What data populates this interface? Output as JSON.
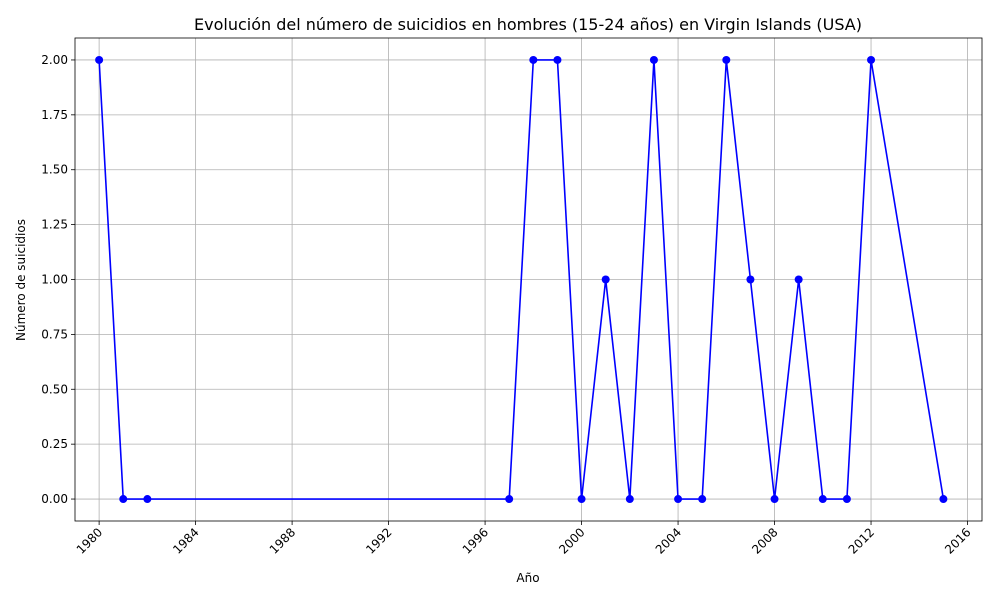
{
  "chart_data": {
    "type": "line",
    "title": "Evolución del número de suicidios en hombres (15-24 años) en Virgin Islands (USA)",
    "xlabel": "Año",
    "ylabel": "Número de suicidios",
    "xlim": [
      1979,
      2016.6
    ],
    "ylim": [
      -0.1,
      2.1
    ],
    "xticks": [
      1980,
      1984,
      1988,
      1992,
      1996,
      2000,
      2004,
      2008,
      2012,
      2016
    ],
    "yticks": [
      0.0,
      0.25,
      0.5,
      0.75,
      1.0,
      1.25,
      1.5,
      1.75,
      2.0
    ],
    "ytick_labels": [
      "0.00",
      "0.25",
      "0.50",
      "0.75",
      "1.00",
      "1.25",
      "1.50",
      "1.75",
      "2.00"
    ],
    "grid": true,
    "series": [
      {
        "color": "#0000ff",
        "marker": "circle",
        "x": [
          1980,
          1981,
          1982,
          1997,
          1998,
          1999,
          2000,
          2001,
          2002,
          2003,
          2004,
          2005,
          2006,
          2007,
          2008,
          2009,
          2010,
          2011,
          2012,
          2015
        ],
        "values": [
          2,
          0,
          0,
          0,
          2,
          2,
          0,
          1,
          0,
          2,
          0,
          0,
          2,
          1,
          0,
          1,
          0,
          0,
          2,
          0
        ]
      }
    ]
  }
}
